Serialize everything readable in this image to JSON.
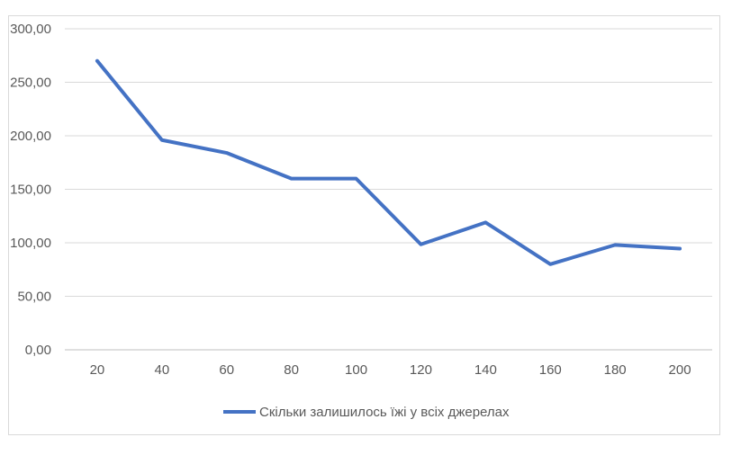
{
  "chart_data": {
    "type": "line",
    "title": "",
    "xlabel": "",
    "ylabel": "",
    "categories": [
      "20",
      "40",
      "60",
      "80",
      "100",
      "120",
      "140",
      "160",
      "180",
      "200"
    ],
    "series": [
      {
        "name": "Скільки залишилось їжі у всіх джерелах",
        "values": [
          270,
          196,
          184,
          160,
          160,
          98.5,
          119,
          80,
          98,
          94.5
        ],
        "color": "#4472C4"
      }
    ],
    "ylim": [
      0,
      300
    ],
    "yticks": [
      "0,00",
      "50,00",
      "100,00",
      "150,00",
      "200,00",
      "250,00",
      "300,00"
    ],
    "grid": "horizontal",
    "legend_position": "bottom"
  }
}
